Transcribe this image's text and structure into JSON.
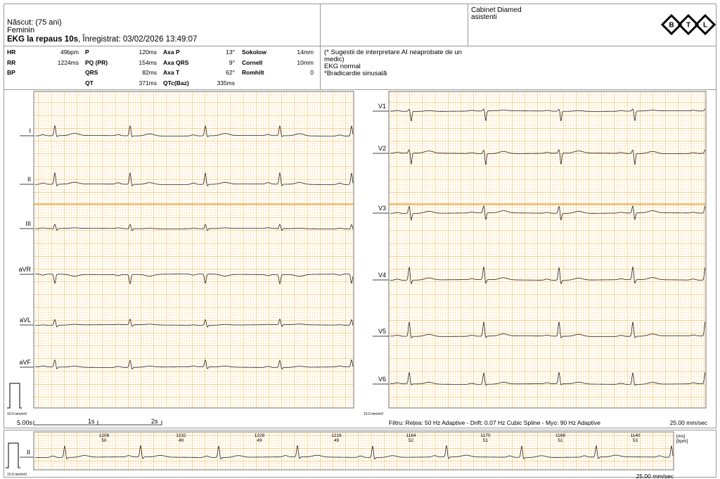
{
  "header": {
    "born": "Născut:  (75 ani)",
    "sex": "Feminin",
    "exam": "EKG la repaus 10s",
    "recorded": ", Înregistrat: 03/02/2026 13:49:07",
    "clinic": "Cabinet Diamed",
    "user": "asistenti",
    "logo": [
      "B",
      "T",
      "L"
    ]
  },
  "measurements": [
    [
      {
        "label": "HR",
        "value": "49bpm"
      },
      {
        "label": "RR",
        "value": "1224ms"
      },
      {
        "label": "BP"
      }
    ],
    [
      {
        "label": "P",
        "value": "120ms"
      },
      {
        "label": "PQ (PR)",
        "value": "154ms"
      },
      {
        "label": "QRS",
        "value": "82ms"
      },
      {
        "label": "QT",
        "value": "371ms"
      }
    ],
    [
      {
        "label": "Axa P",
        "value": "13°"
      },
      {
        "label": "Axa QRS",
        "value": "9°"
      },
      {
        "label": "Axa T",
        "value": "62°"
      },
      {
        "label": "QTc(Baz)",
        "value": "335ms"
      }
    ],
    [
      {
        "label": "Sokolow",
        "value": "14mm"
      },
      {
        "label": "Cornell",
        "value": "10mm"
      },
      {
        "label": "Romhilt",
        "value": "0"
      }
    ]
  ],
  "interpretation": [
    "(* Sugestii de interpretare AI neaprobate de un medic)",
    "EKG normal",
    "*Bradicardie sinusală"
  ],
  "leads": {
    "left": [
      "I",
      "II",
      "III",
      "aVR",
      "aVL",
      "aVF"
    ],
    "right": [
      "V1",
      "V2",
      "V3",
      "V4",
      "V5",
      "V6"
    ]
  },
  "gain": "10.0 mm/mV",
  "timescale": {
    "total": "5.00s",
    "marks": [
      "1s",
      "2s"
    ]
  },
  "filter": "Filtru: Rețea: 50 Hz Adaptive - Drift: 0.07 Hz Cubic Spline - Myo: 90 Hz Adaptive",
  "speed": "25.00 mm/sec",
  "rhythm": {
    "lead": "II",
    "units": [
      "[ms]",
      "[bpm]"
    ],
    "intervals": [
      {
        "ms": "1206",
        "bpm": "50"
      },
      {
        "ms": "1232",
        "bpm": "49"
      },
      {
        "ms": "1228",
        "bpm": "49"
      },
      {
        "ms": "1216",
        "bpm": "49"
      },
      {
        "ms": "1164",
        "bpm": "52"
      },
      {
        "ms": "1170",
        "bpm": "51"
      },
      {
        "ms": "1168",
        "bpm": "51"
      },
      {
        "ms": "1140",
        "bpm": "53"
      }
    ]
  }
}
